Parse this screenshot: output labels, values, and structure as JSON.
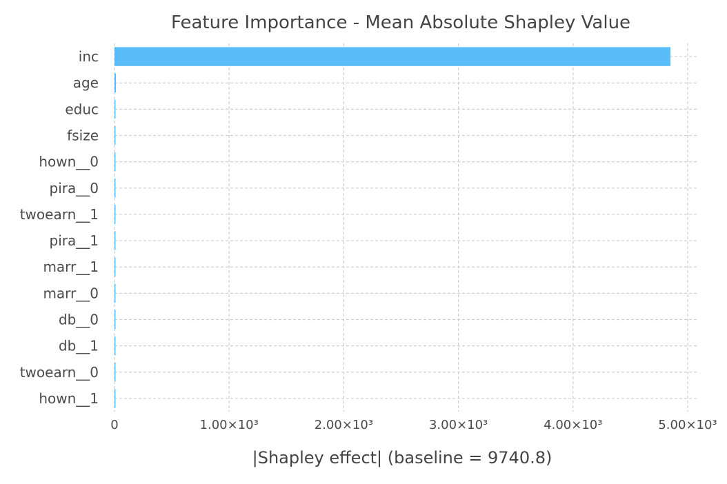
{
  "chart_data": {
    "type": "bar",
    "orientation": "horizontal",
    "title": "Feature Importance - Mean Absolute Shapley Value",
    "xlabel": "|Shapley effect| (baseline = 9740.8)",
    "ylabel": "",
    "categories": [
      "inc",
      "age",
      "educ",
      "fsize",
      "hown__0",
      "pira__0",
      "twoearn__1",
      "pira__1",
      "marr__1",
      "marr__0",
      "db__0",
      "db__1",
      "twoearn__0",
      "hown__1"
    ],
    "values": [
      4850,
      12,
      8,
      8,
      6,
      6,
      2,
      1.5,
      1,
      1,
      0.8,
      0.8,
      0.5,
      0.5
    ],
    "xlim": [
      0,
      5000
    ],
    "xticks": [
      0,
      1000,
      2000,
      3000,
      4000,
      5000
    ],
    "xtick_labels": [
      "0",
      "1.00×10³",
      "2.00×10³",
      "3.00×10³",
      "4.00×10³",
      "5.00×10³"
    ],
    "grid": true,
    "bar_color": "#5bbcfa",
    "legend": "none"
  }
}
